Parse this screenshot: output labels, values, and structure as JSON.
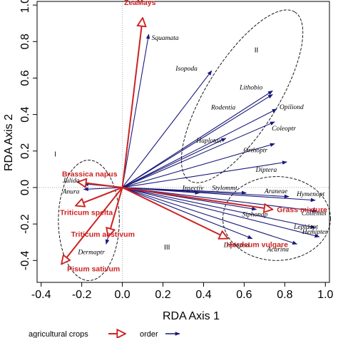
{
  "chart_data": {
    "type": "scatter",
    "xlabel": "RDA Axis 1",
    "ylabel": "RDA Axis 2",
    "xlim": [
      -0.42,
      1.02
    ],
    "ylim": [
      -0.52,
      1.02
    ],
    "xticks": [
      "-0.4",
      "-0.2",
      "0.0",
      "0.2",
      "0.4",
      "0.6",
      "0.8",
      "1.0"
    ],
    "yticks": [
      "-0.4",
      "-0.2",
      "0.0",
      "0.2",
      "0.4",
      "0.6",
      "0.8",
      "1.0"
    ],
    "grid": false,
    "legend_position": "bottom",
    "legend": [
      {
        "name": "agricultural crops",
        "color": "#cc2222",
        "marker": "open-arrow"
      },
      {
        "name": "order",
        "color": "#1a1a7a",
        "marker": "filled-arrow"
      }
    ],
    "series": [
      {
        "name": "agricultural crops",
        "color": "#cc2222",
        "points": [
          {
            "label": "ZeaMays",
            "x": 0.1,
            "y": 0.93
          },
          {
            "label": "Brassica napus",
            "x": -0.22,
            "y": 0.03
          },
          {
            "label": "Triticum spelta",
            "x": -0.23,
            "y": -0.1
          },
          {
            "label": "Triticum aestivum",
            "x": -0.07,
            "y": -0.27
          },
          {
            "label": "Pisum sativum",
            "x": -0.3,
            "y": -0.42
          },
          {
            "label": "Hordeum vulgare",
            "x": 0.52,
            "y": -0.28
          },
          {
            "label": "Grass mixture",
            "x": 0.74,
            "y": -0.12
          }
        ]
      },
      {
        "name": "order",
        "color": "#1a1a7a",
        "points": [
          {
            "label": "Squamata",
            "x": 0.13,
            "y": 0.84
          },
          {
            "label": "Isopoda",
            "x": 0.44,
            "y": 0.64
          },
          {
            "label": "Lithobio",
            "x": 0.74,
            "y": 0.53
          },
          {
            "label": "Rodentia",
            "x": 0.74,
            "y": 0.51
          },
          {
            "label": "Opiliond",
            "x": 0.76,
            "y": 0.43
          },
          {
            "label": "Coleoptr",
            "x": 0.75,
            "y": 0.36
          },
          {
            "label": "Haplotax",
            "x": 0.51,
            "y": 0.27
          },
          {
            "label": "Orthoptr",
            "x": 0.75,
            "y": 0.24
          },
          {
            "label": "Diptera",
            "x": 0.81,
            "y": 0.14
          },
          {
            "label": "Julida",
            "x": -0.19,
            "y": 0.02
          },
          {
            "label": "Anura",
            "x": -0.19,
            "y": -0.01
          },
          {
            "label": "Dermaptr",
            "x": -0.08,
            "y": -0.31
          },
          {
            "label": "Insectiv",
            "x": 0.38,
            "y": -0.03
          },
          {
            "label": "Stylommt",
            "x": 0.61,
            "y": -0.03
          },
          {
            "label": "Araneae",
            "x": 0.82,
            "y": -0.05
          },
          {
            "label": "Hymenopt",
            "x": 0.95,
            "y": -0.07
          },
          {
            "label": "Siphonap",
            "x": 0.66,
            "y": -0.12
          },
          {
            "label": "Collembl",
            "x": 0.96,
            "y": -0.13
          },
          {
            "label": "Lepidopt",
            "x": 0.95,
            "y": -0.22
          },
          {
            "label": "Hemipter",
            "x": 0.97,
            "y": -0.27
          },
          {
            "label": "Diplopod",
            "x": 0.64,
            "y": -0.28
          },
          {
            "label": "Acarina",
            "x": 0.86,
            "y": -0.31
          }
        ]
      }
    ],
    "annotations": [
      "I",
      "II",
      "III"
    ]
  }
}
